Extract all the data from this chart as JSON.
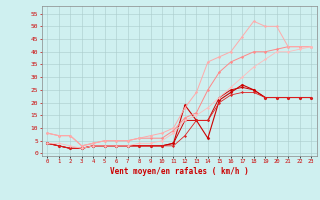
{
  "bg_color": "#cff0f0",
  "grid_color": "#aacccc",
  "text_color": "#cc0000",
  "xlabel": "Vent moyen/en rafales ( km/h )",
  "x_ticks": [
    0,
    1,
    2,
    3,
    4,
    5,
    6,
    7,
    8,
    9,
    10,
    11,
    12,
    13,
    14,
    15,
    16,
    17,
    18,
    19,
    20,
    21,
    22,
    23
  ],
  "ylim": [
    -1,
    58
  ],
  "xlim": [
    -0.5,
    23.5
  ],
  "yticks": [
    0,
    5,
    10,
    15,
    20,
    25,
    30,
    35,
    40,
    45,
    50,
    55
  ],
  "series": [
    {
      "x": [
        0,
        1,
        2,
        3,
        4,
        5,
        6,
        7,
        8,
        9,
        10,
        11,
        12,
        13,
        14,
        15,
        16,
        17,
        18,
        19,
        20,
        21,
        22,
        23
      ],
      "y": [
        4,
        3,
        2,
        2,
        3,
        3,
        3,
        3,
        3,
        3,
        3,
        4,
        19,
        13,
        6,
        21,
        24,
        27,
        25,
        22,
        22,
        22,
        22,
        22
      ],
      "color": "#cc0000",
      "lw": 0.8,
      "marker": "D",
      "ms": 1.5
    },
    {
      "x": [
        0,
        1,
        2,
        3,
        4,
        5,
        6,
        7,
        8,
        9,
        10,
        11,
        12,
        13,
        14,
        15,
        16,
        17,
        18,
        19,
        20,
        21,
        22,
        23
      ],
      "y": [
        4,
        3,
        2,
        2,
        3,
        3,
        3,
        3,
        3,
        3,
        3,
        4,
        13,
        13,
        13,
        22,
        25,
        26,
        25,
        22,
        22,
        22,
        22,
        22
      ],
      "color": "#cc0000",
      "lw": 0.7,
      "marker": "D",
      "ms": 1.3
    },
    {
      "x": [
        0,
        1,
        2,
        3,
        4,
        5,
        6,
        7,
        8,
        9,
        10,
        11,
        12,
        13,
        14,
        15,
        16,
        17,
        18,
        19,
        20,
        21,
        22,
        23
      ],
      "y": [
        4,
        3,
        2,
        2,
        3,
        3,
        3,
        3,
        3,
        3,
        3,
        3,
        7,
        13,
        13,
        20,
        23,
        24,
        24,
        22,
        22,
        22,
        22,
        22
      ],
      "color": "#dd2222",
      "lw": 0.6,
      "marker": "D",
      "ms": 1.2
    },
    {
      "x": [
        0,
        1,
        2,
        3,
        4,
        5,
        6,
        7,
        8,
        9,
        10,
        11,
        12,
        13,
        14,
        15,
        16,
        17,
        18,
        19,
        20,
        21,
        22,
        23
      ],
      "y": [
        8,
        7,
        7,
        3,
        4,
        5,
        5,
        5,
        6,
        6,
        6,
        9,
        14,
        16,
        25,
        32,
        36,
        38,
        40,
        40,
        41,
        42,
        42,
        42
      ],
      "color": "#ff8888",
      "lw": 0.7,
      "marker": "D",
      "ms": 1.3
    },
    {
      "x": [
        0,
        1,
        2,
        3,
        4,
        5,
        6,
        7,
        8,
        9,
        10,
        11,
        12,
        13,
        14,
        15,
        16,
        17,
        18,
        19,
        20,
        21,
        22,
        23
      ],
      "y": [
        8,
        7,
        7,
        3,
        4,
        5,
        5,
        5,
        6,
        7,
        8,
        10,
        18,
        24,
        36,
        38,
        40,
        46,
        52,
        50,
        50,
        42,
        42,
        42
      ],
      "color": "#ffaaaa",
      "lw": 0.7,
      "marker": "D",
      "ms": 1.3
    },
    {
      "x": [
        0,
        1,
        2,
        3,
        4,
        5,
        6,
        7,
        8,
        9,
        10,
        11,
        12,
        13,
        14,
        15,
        16,
        17,
        18,
        19,
        20,
        21,
        22,
        23
      ],
      "y": [
        4,
        4,
        3,
        2,
        3,
        3,
        3,
        3,
        4,
        4,
        5,
        8,
        13,
        15,
        18,
        22,
        26,
        30,
        34,
        37,
        40,
        40,
        41,
        42
      ],
      "color": "#ffbbbb",
      "lw": 0.6,
      "marker": "D",
      "ms": 1.2
    }
  ]
}
